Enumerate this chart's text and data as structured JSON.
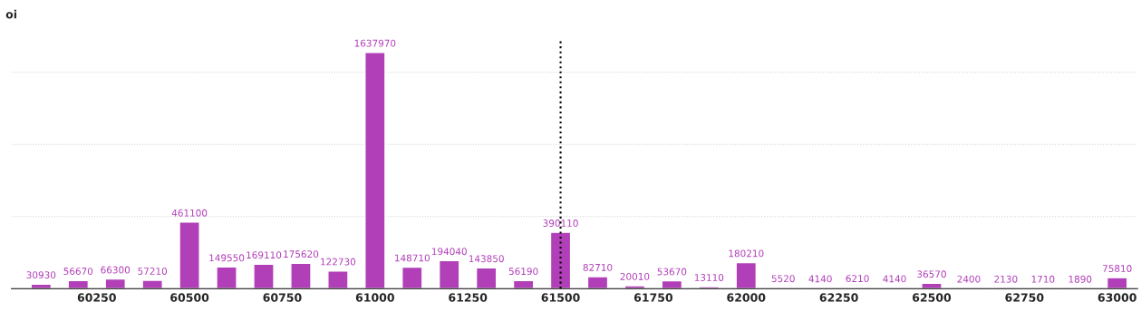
{
  "chart_data": {
    "type": "bar",
    "ylabel": "oi",
    "x": [
      60100,
      60200,
      60300,
      60400,
      60500,
      60600,
      60700,
      60800,
      60900,
      61000,
      61100,
      61200,
      61300,
      61400,
      61500,
      61600,
      61700,
      61800,
      61900,
      62000,
      62100,
      62200,
      62300,
      62400,
      62500,
      62600,
      62700,
      62800,
      62900,
      63000
    ],
    "series": [
      {
        "color": "#b13fb8",
        "values": [
          30930,
          56670,
          66300,
          57210,
          461100,
          149550,
          169110,
          175620,
          122730,
          1637970,
          148710,
          194040,
          143850,
          56190,
          390110,
          82710,
          20010,
          53670,
          13110,
          180210,
          5520,
          4140,
          6210,
          4140,
          36570,
          2400,
          2130,
          1710,
          1890,
          75810
        ]
      }
    ],
    "data_labels": true,
    "xlim": [
      60020,
      63055
    ],
    "xticks": [
      60250,
      60500,
      60750,
      61000,
      61250,
      61500,
      61750,
      62000,
      62250,
      62500,
      62750,
      63000
    ],
    "ylim": [
      0,
      1720000
    ],
    "yticks": [
      {
        "value": 500000,
        "label": null
      },
      {
        "value": 1000000,
        "label": null
      },
      {
        "value": 1500000,
        "label": null
      }
    ],
    "tick_labels": "x",
    "grid": "y",
    "legend": false,
    "ref_lines": [
      {
        "axis": "x",
        "value": 61500,
        "color": "#000000",
        "line_style": "dotted"
      }
    ]
  }
}
